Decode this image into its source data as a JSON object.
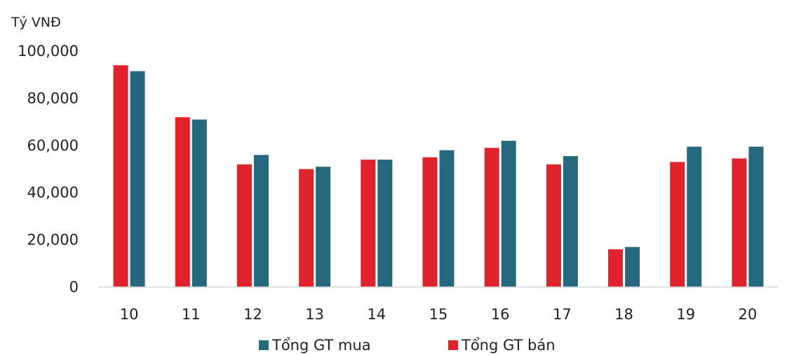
{
  "chart_data": {
    "type": "bar",
    "unit_label": "Tỷ VNĐ",
    "categories": [
      "10",
      "11",
      "12",
      "13",
      "14",
      "15",
      "16",
      "17",
      "18",
      "19",
      "20"
    ],
    "series": [
      {
        "name": "Tổng GT bán",
        "color": "#e0222c",
        "values": [
          94000,
          72000,
          52000,
          50000,
          54000,
          55000,
          59000,
          52000,
          16000,
          53000,
          54500
        ]
      },
      {
        "name": "Tổng GT mua",
        "color": "#26687e",
        "values": [
          91500,
          71000,
          56000,
          51000,
          54000,
          58000,
          62000,
          55500,
          17000,
          59500,
          59500
        ]
      }
    ],
    "y_ticks": [
      "0",
      "20,000",
      "40,000",
      "60,000",
      "80,000",
      "100,000"
    ],
    "ylim": [
      0,
      100000
    ],
    "grid": false,
    "legend": {
      "position": "bottom",
      "items": [
        {
          "label": "Tổng GT mua",
          "color": "#26687e"
        },
        {
          "label": "Tổng GT bán",
          "color": "#e0222c"
        }
      ]
    }
  }
}
